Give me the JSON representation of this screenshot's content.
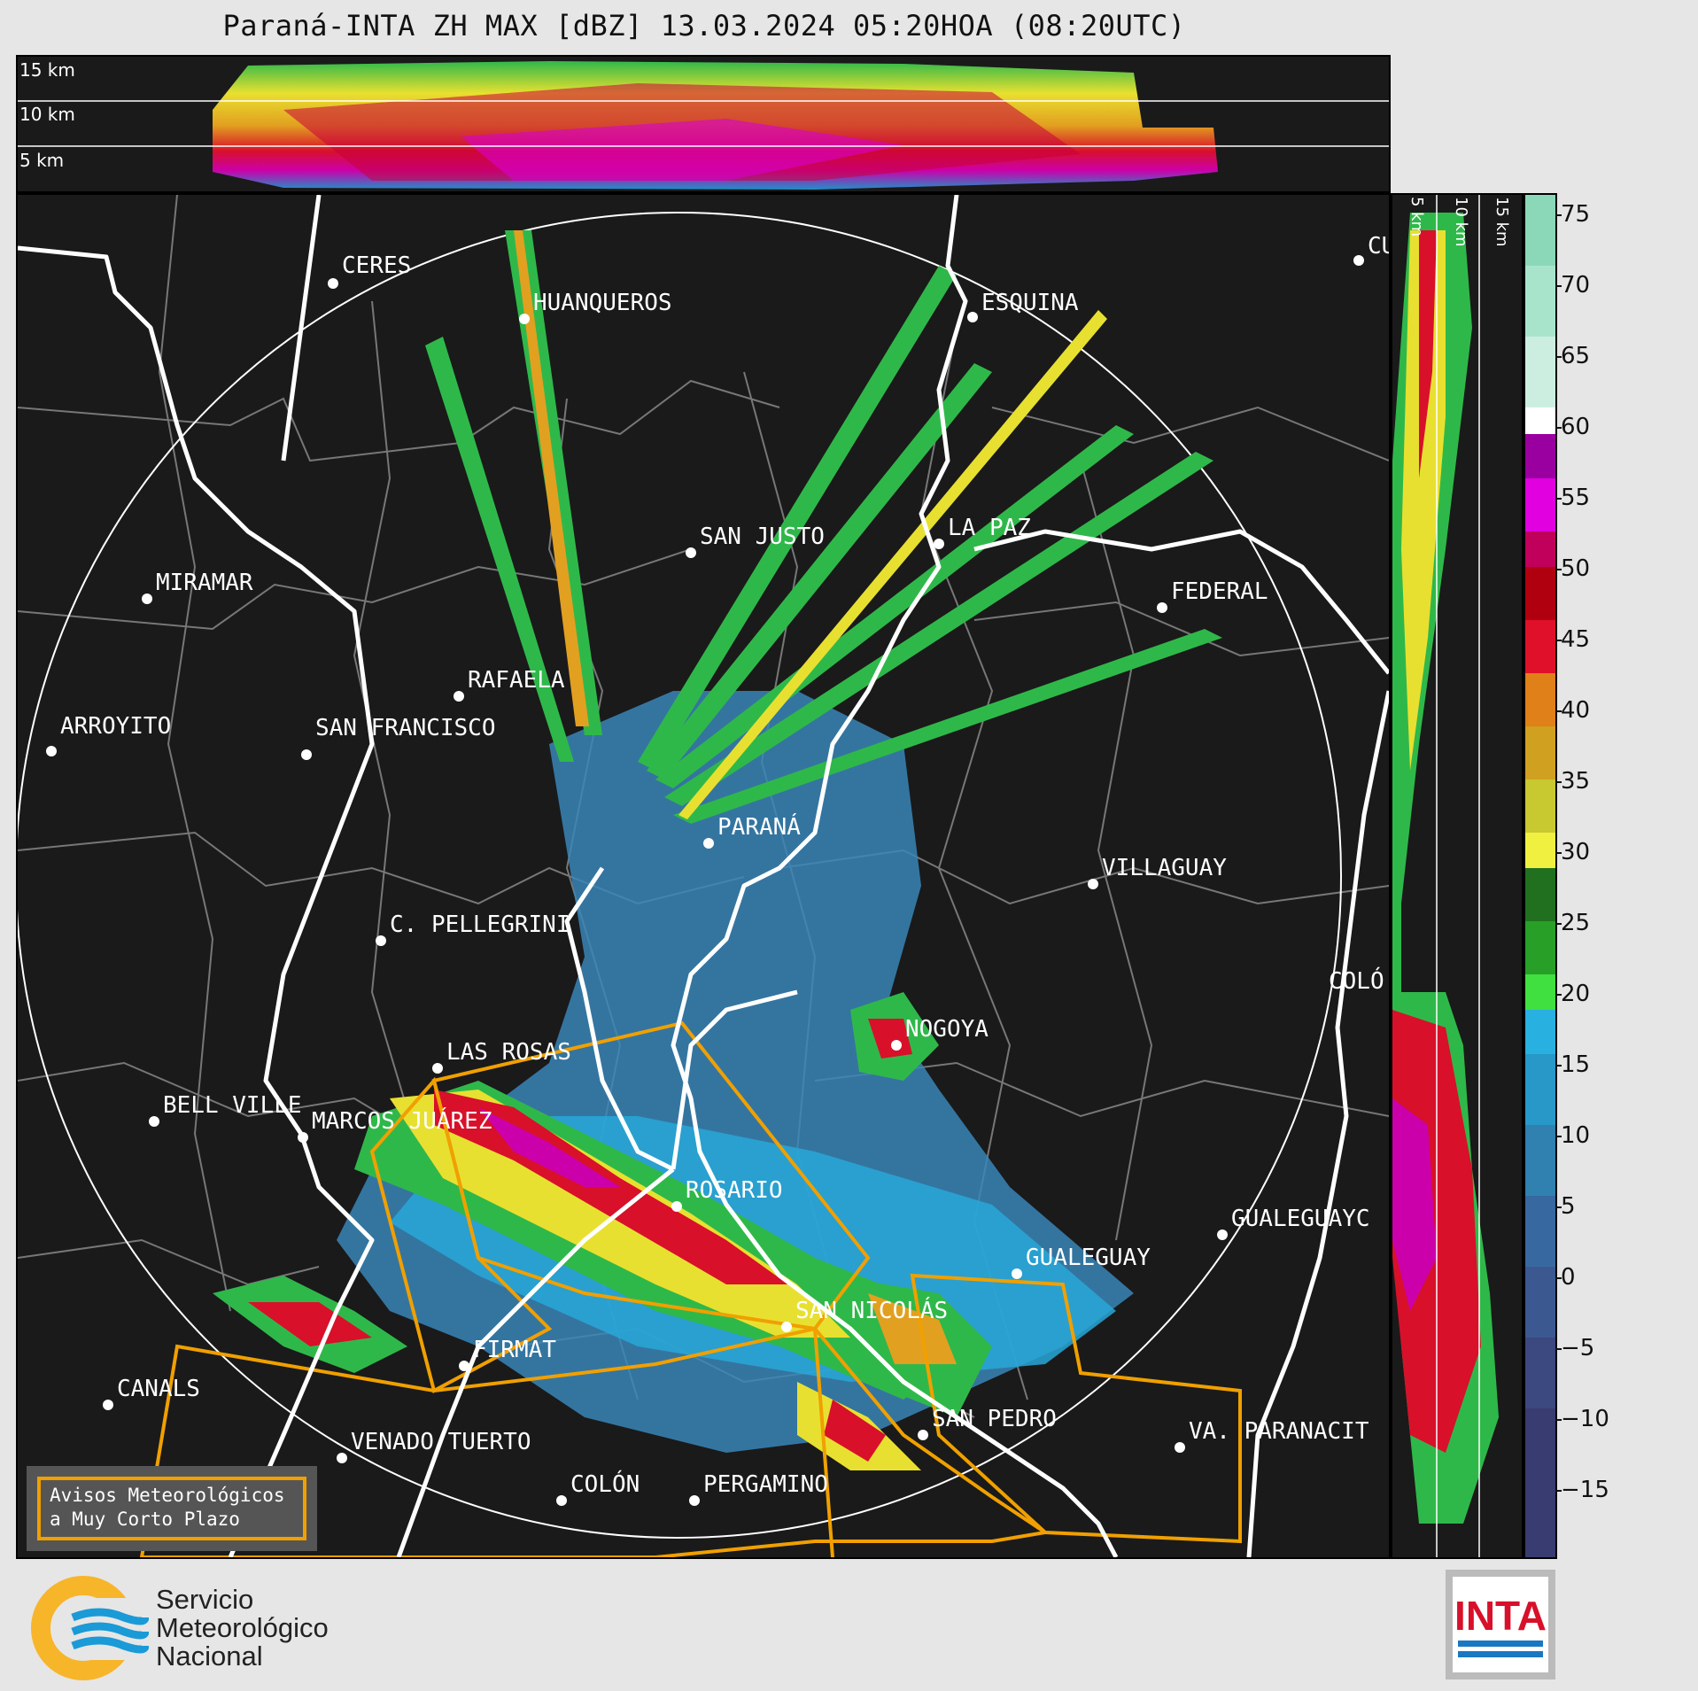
{
  "title": "Paraná-INTA ZH MAX [dBZ] 13.03.2024 05:20HOA (08:20UTC)",
  "height_labels": [
    "15 km",
    "10 km",
    "5 km"
  ],
  "side_height_labels": [
    "5 km",
    "10 km",
    "15 km"
  ],
  "colorbar": {
    "ticks": [
      "75",
      "70",
      "65",
      "60",
      "55",
      "50",
      "45",
      "40",
      "35",
      "30",
      "25",
      "20",
      "15",
      "10",
      "5",
      "0",
      "−5",
      "−10",
      "−15"
    ]
  },
  "cities": [
    {
      "name": "CERES"
    },
    {
      "name": "HUANQUEROS"
    },
    {
      "name": "ESQUINA"
    },
    {
      "name": "CU"
    },
    {
      "name": "SAN JUSTO"
    },
    {
      "name": "LA PAZ"
    },
    {
      "name": "MIRAMAR"
    },
    {
      "name": "FEDERAL"
    },
    {
      "name": "RAFAELA"
    },
    {
      "name": "ARROYITO"
    },
    {
      "name": "SAN FRANCISCO"
    },
    {
      "name": "PARANÁ"
    },
    {
      "name": "VILLAGUAY"
    },
    {
      "name": "C. PELLEGRINI"
    },
    {
      "name": "COLÓ"
    },
    {
      "name": "NOGOYA"
    },
    {
      "name": "LAS ROSAS"
    },
    {
      "name": "BELL VILLE"
    },
    {
      "name": "MARCOS JUÁREZ"
    },
    {
      "name": "ROSARIO"
    },
    {
      "name": "GUALEGUAYC"
    },
    {
      "name": "GUALEGUAY"
    },
    {
      "name": "SAN NICOLÁS"
    },
    {
      "name": "FIRMAT"
    },
    {
      "name": "CANALS"
    },
    {
      "name": "SAN PEDRO"
    },
    {
      "name": "VA. PARANACIT"
    },
    {
      "name": "VENADO TUERTO"
    },
    {
      "name": "COLÓN"
    },
    {
      "name": "PERGAMINO"
    }
  ],
  "legend": {
    "line1": "Avisos Meteorológicos",
    "line2": "a Muy Corto Plazo"
  },
  "smn": {
    "line1": "Servicio",
    "line2": "Meteorológico",
    "line3": "Nacional"
  },
  "inta": {
    "text": "INTA"
  },
  "colors": {
    "warning": "#f0a000",
    "background": "#1a1a1a",
    "boundary": "#ffffff"
  }
}
